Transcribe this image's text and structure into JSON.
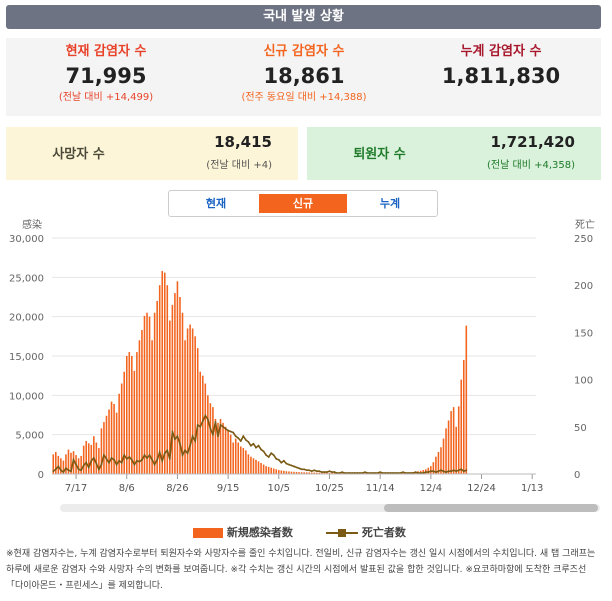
{
  "header": {
    "title": "국내 발생 상황"
  },
  "stats": [
    {
      "label": "현재 감염자 수",
      "value": "71,995",
      "sub": "(전날 대비 +14,499)",
      "color": "#e8432a"
    },
    {
      "label": "신규 감염자 수",
      "value": "18,861",
      "sub": "(전주 동요일 대비 +14,388)",
      "color": "#f3641e"
    },
    {
      "label": "누계 감염자 수",
      "value": "1,811,830",
      "sub": "",
      "color": "#a8172c"
    }
  ],
  "deaths_box": {
    "label": "사망자 수",
    "value": "18,415",
    "sub": "(전날 대비 +4)",
    "bg": "#fdf5d7",
    "label_color": "#4a4a3a",
    "sub_color": "#555"
  },
  "recovered_box": {
    "label": "퇴원자 수",
    "value": "1,721,420",
    "sub": "(전날 대비 +4,358)",
    "bg": "#daf2dc",
    "label_color": "#1f7a2a",
    "sub_color": "#1f7a2a"
  },
  "tabs": [
    {
      "label": "현재",
      "active": false
    },
    {
      "label": "신규",
      "active": true
    },
    {
      "label": "누계",
      "active": false
    }
  ],
  "legend": {
    "bars": "新規感染者数",
    "line": "死亡者数"
  },
  "note": "※현재 감염자수는, 누계 감염자수로부터 퇴원자수와 사망자수를 줄인 수치입니다. 전일비, 신규 감염자수는 갱신 일시 시점에서의 수치입니다. 새 탭 그래프는 하루에 새로운 감염자 수와 사망자 수의 변화를 보여줍니다. ※각 수치는 갱신 시간의 시점에서 발표된 값을 합한 것입니다. ※요코하마항에 도착한 크루즈선 「다이아몬드・프린세스」를 제외합니다.",
  "chart_data": {
    "type": "bar",
    "y_left_label": "感染",
    "y_right_label": "死亡",
    "ylim_left": [
      0,
      30000
    ],
    "ylim_right": [
      0,
      250
    ],
    "y_left_ticks": [
      "0",
      "5,000",
      "10,000",
      "15,000",
      "20,000",
      "25,000",
      "30,000"
    ],
    "y_right_ticks": [
      "0",
      "50",
      "100",
      "150",
      "200",
      "250"
    ],
    "x_tick_labels": [
      "7/17",
      "8/6",
      "8/26",
      "9/15",
      "10/5",
      "10/25",
      "11/14",
      "12/4",
      "12/24",
      "1/13"
    ],
    "x_start": "2021-07-08",
    "x_end": "2022-01-14",
    "grid": true,
    "colors": {
      "bars": "#f3641e",
      "line": "#7a5a14",
      "grid": "#e6e6e6"
    },
    "series": [
      {
        "name": "新規感染者数",
        "type": "bar",
        "axis": "left",
        "values": [
          2500,
          2800,
          2300,
          2000,
          1700,
          2500,
          3100,
          2700,
          2900,
          2400,
          2000,
          2300,
          3600,
          4200,
          3900,
          3700,
          4800,
          4000,
          3300,
          5800,
          6600,
          7400,
          8200,
          9200,
          8900,
          7800,
          10200,
          11500,
          13000,
          15000,
          15500,
          15000,
          13100,
          15500,
          17000,
          18300,
          20100,
          20500,
          20000,
          17000,
          20500,
          22000,
          24000,
          25800,
          25600,
          24000,
          19500,
          21500,
          23000,
          24500,
          22500,
          20500,
          17000,
          18500,
          19000,
          18500,
          17500,
          16000,
          13000,
          12500,
          11500,
          10000,
          9000,
          8500,
          7000,
          6500,
          7000,
          6500,
          6000,
          5500,
          5000,
          4000,
          4500,
          4000,
          3500,
          3300,
          3000,
          2500,
          2200,
          2000,
          1800,
          1600,
          1400,
          1200,
          1000,
          900,
          800,
          700,
          600,
          500,
          450,
          400,
          350,
          320,
          300,
          280,
          260,
          240,
          230,
          220,
          210,
          200,
          190,
          180,
          170,
          160,
          150,
          140,
          140,
          130,
          130,
          130,
          120,
          120,
          120,
          110,
          110,
          110,
          110,
          110,
          110,
          110,
          110,
          110,
          120,
          120,
          120,
          120,
          130,
          130,
          130,
          130,
          140,
          140,
          150,
          150,
          150,
          160,
          170,
          180,
          200,
          220,
          260,
          300,
          350,
          400,
          500,
          600,
          800,
          1000,
          1500,
          2200,
          2800,
          3400,
          4500,
          5800,
          6800,
          8000,
          8500,
          6000,
          8600,
          12000,
          14500,
          18861
        ]
      },
      {
        "name": "死亡者数",
        "type": "line",
        "axis": "right",
        "values": [
          3,
          5,
          8,
          4,
          2,
          6,
          4,
          3,
          15,
          10,
          5,
          4,
          9,
          12,
          7,
          14,
          17,
          11,
          5,
          10,
          20,
          16,
          12,
          17,
          15,
          10,
          14,
          12,
          20,
          16,
          18,
          15,
          10,
          14,
          13,
          15,
          20,
          17,
          20,
          15,
          10,
          15,
          23,
          14,
          22,
          25,
          16,
          45,
          37,
          40,
          32,
          20,
          25,
          22,
          30,
          40,
          35,
          52,
          50,
          56,
          62,
          58,
          48,
          42,
          55,
          40,
          52,
          50,
          48,
          46,
          45,
          44,
          40,
          38,
          35,
          40,
          36,
          34,
          30,
          32,
          28,
          30,
          26,
          24,
          20,
          18,
          22,
          20,
          16,
          15,
          12,
          14,
          11,
          10,
          9,
          8,
          7,
          6,
          5,
          5,
          4,
          4,
          3,
          4,
          3,
          3,
          2,
          2,
          2,
          3,
          2,
          2,
          1,
          1,
          2,
          1,
          1,
          1,
          1,
          1,
          1,
          1,
          1,
          2,
          1,
          1,
          1,
          1,
          1,
          2,
          1,
          1,
          1,
          1,
          1,
          1,
          1,
          1,
          2,
          1,
          1,
          1,
          1,
          2,
          1,
          1,
          1,
          2,
          2,
          3,
          3,
          2,
          3,
          4,
          3,
          2,
          3,
          3,
          4,
          3,
          4,
          5,
          3,
          4
        ]
      }
    ]
  }
}
